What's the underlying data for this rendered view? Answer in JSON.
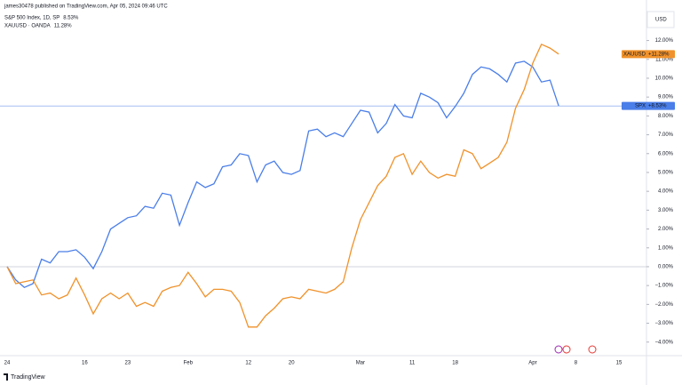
{
  "header": {
    "publisher": "james30478 published on TradingView.com, Apr 05, 2024 09:46 UTC",
    "currency": "USD",
    "logo": "TradingView"
  },
  "chart_data": {
    "type": "line",
    "categories": [
      "24",
      null,
      null,
      null,
      null,
      null,
      null,
      null,
      null,
      "16",
      null,
      null,
      null,
      null,
      "23",
      null,
      null,
      null,
      null,
      null,
      null,
      "Feb",
      null,
      null,
      null,
      null,
      null,
      null,
      "12",
      null,
      null,
      null,
      null,
      "20",
      null,
      null,
      null,
      null,
      null,
      null,
      null,
      "Mar",
      null,
      null,
      null,
      null,
      null,
      "11",
      null,
      null,
      null,
      null,
      "18",
      null,
      null,
      null,
      null,
      null,
      null,
      null,
      null,
      "Apr",
      null,
      null,
      null,
      null,
      "8",
      null,
      null,
      null,
      null,
      "15"
    ],
    "series": [
      {
        "name": "S&P 500 Index, 1D, SP",
        "ticker": "SPX",
        "color": "#4a7ee8",
        "last_label": "8.53%",
        "badge_label": "+8.53%",
        "values": [
          0,
          -0.7,
          -1.1,
          -0.9,
          0.4,
          0.2,
          0.8,
          0.8,
          0.9,
          0.5,
          -0.1,
          0.8,
          2.0,
          2.3,
          2.6,
          2.7,
          3.2,
          3.1,
          3.9,
          3.8,
          2.2,
          3.4,
          4.5,
          4.2,
          4.4,
          5.3,
          5.4,
          6.0,
          5.9,
          4.5,
          5.4,
          5.6,
          5.0,
          4.9,
          5.1,
          7.2,
          7.3,
          6.9,
          7.1,
          6.9,
          7.6,
          8.3,
          8.2,
          7.1,
          7.6,
          8.6,
          8.0,
          7.9,
          9.2,
          9.0,
          8.7,
          7.9,
          8.5,
          9.2,
          10.2,
          10.6,
          10.5,
          10.2,
          9.8,
          10.8,
          10.9,
          10.6,
          9.8,
          9.9,
          8.53,
          null,
          null,
          null,
          null,
          null,
          null,
          null
        ]
      },
      {
        "name": "XAUUSD · OANDA",
        "ticker": "XAUUSD",
        "color": "#f0922b",
        "last_label": "11.28%",
        "badge_label": "+11.28%",
        "values": [
          0,
          -0.9,
          -0.8,
          -0.7,
          -1.5,
          -1.4,
          -1.7,
          -1.5,
          -0.6,
          -1.5,
          -2.5,
          -1.7,
          -1.4,
          -1.7,
          -1.4,
          -2.1,
          -1.9,
          -2.1,
          -1.3,
          -1.1,
          -1.0,
          -0.3,
          -0.9,
          -1.6,
          -1.2,
          -1.2,
          -1.3,
          -1.9,
          -3.2,
          -3.2,
          -2.6,
          -2.2,
          -1.7,
          -1.6,
          -1.7,
          -1.2,
          -1.3,
          -1.4,
          -1.2,
          -0.8,
          1.0,
          2.5,
          3.4,
          4.3,
          4.8,
          5.8,
          6.0,
          4.9,
          5.6,
          5.0,
          4.7,
          4.9,
          4.8,
          6.2,
          6.0,
          5.2,
          5.5,
          5.8,
          6.6,
          8.4,
          9.4,
          10.8,
          11.8,
          11.6,
          11.28,
          null,
          null,
          null,
          null,
          null,
          null,
          null
        ]
      }
    ],
    "ylim": [
      -4.72,
      14.15
    ],
    "yticks": [
      {
        "value": -4,
        "label": "−4.00%"
      },
      {
        "value": -3,
        "label": "−3.00%"
      },
      {
        "value": -2,
        "label": "−2.00%"
      },
      {
        "value": -1,
        "label": "−1.00%"
      },
      {
        "value": 0,
        "label": "0.00%"
      },
      {
        "value": 1,
        "label": "1.00%"
      },
      {
        "value": 2,
        "label": "2.00%"
      },
      {
        "value": 3,
        "label": "3.00%"
      },
      {
        "value": 4,
        "label": "4.00%"
      },
      {
        "value": 5,
        "label": "5.00%"
      },
      {
        "value": 6,
        "label": "6.00%"
      },
      {
        "value": 7,
        "label": "7.00%"
      },
      {
        "value": 8,
        "label": "8.00%"
      },
      {
        "value": 9,
        "label": "9.00%"
      },
      {
        "value": 10,
        "label": "10.00%"
      },
      {
        "value": 11,
        "label": "11.00%"
      },
      {
        "value": 12,
        "label": "12.00%"
      }
    ],
    "grid": false
  }
}
